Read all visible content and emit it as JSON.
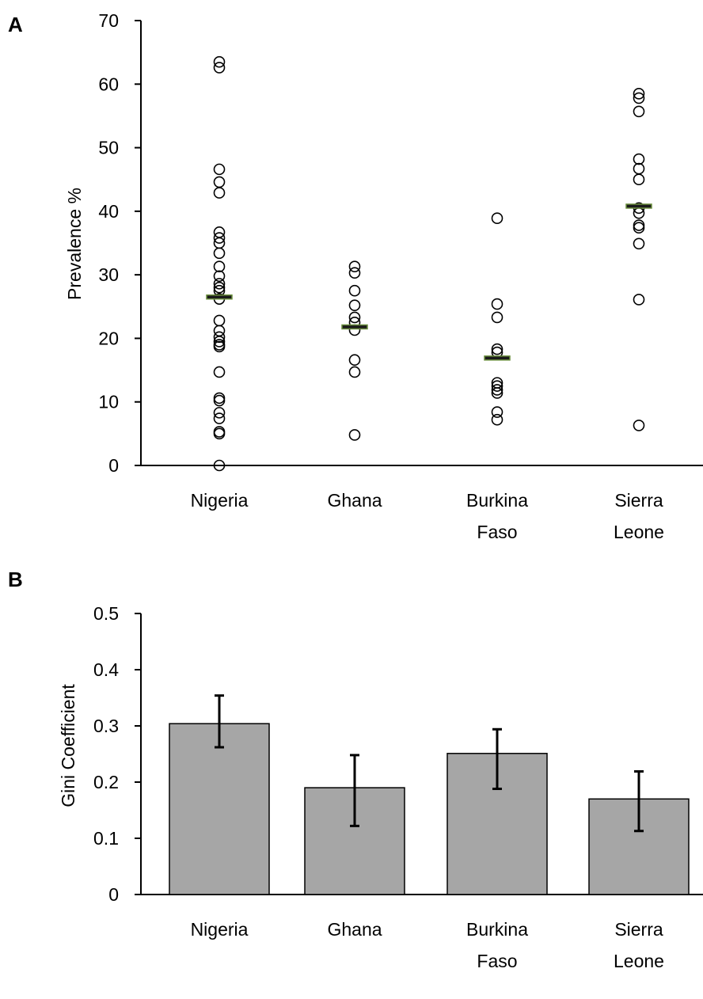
{
  "chart_data": [
    {
      "panel": "A",
      "type": "scatter",
      "categories": [
        "Nigeria",
        "Ghana",
        "Burkina Faso",
        "Sierra Leone"
      ],
      "ylabel": "Prevalence %",
      "ylim": [
        0,
        70
      ],
      "yticks": [
        0,
        10,
        20,
        30,
        40,
        50,
        60,
        70
      ],
      "grid": false,
      "points": [
        [
          63.5,
          62.6,
          46.6,
          44.6,
          42.9,
          36.7,
          35.8,
          35.0,
          33.4,
          31.3,
          29.8,
          28.6,
          28.0,
          27.5,
          26.2,
          22.8,
          21.2,
          20.2,
          19.5,
          19.0,
          18.7,
          14.7,
          10.6,
          10.2,
          8.3,
          7.4,
          5.3,
          5.0,
          0.0
        ],
        [
          31.3,
          30.3,
          27.5,
          25.2,
          23.3,
          22.5,
          21.3,
          16.6,
          14.7,
          4.8
        ],
        [
          38.9,
          25.4,
          23.3,
          18.3,
          17.8,
          13.0,
          12.5,
          11.9,
          11.4,
          8.4,
          7.2
        ],
        [
          58.5,
          57.8,
          55.7,
          48.2,
          46.7,
          45.0,
          40.5,
          39.7,
          37.8,
          37.4,
          34.9,
          26.1,
          6.3
        ]
      ],
      "means": [
        26.5,
        21.8,
        16.9,
        40.8
      ],
      "mean_marker_color": "#6b8e3e"
    },
    {
      "panel": "B",
      "type": "bar",
      "categories": [
        "Nigeria",
        "Ghana",
        "Burkina Faso",
        "Sierra Leone"
      ],
      "ylabel": "Gini Coefficient",
      "ylim": [
        0,
        0.5
      ],
      "yticks": [
        "0",
        "0.1",
        "0.2",
        "0.3",
        "0.4",
        "0.5"
      ],
      "grid": false,
      "values": [
        0.304,
        0.19,
        0.251,
        0.17
      ],
      "error_low": [
        0.262,
        0.122,
        0.188,
        0.113
      ],
      "error_high": [
        0.354,
        0.248,
        0.294,
        0.219
      ],
      "bar_color": "#a6a6a6"
    }
  ]
}
